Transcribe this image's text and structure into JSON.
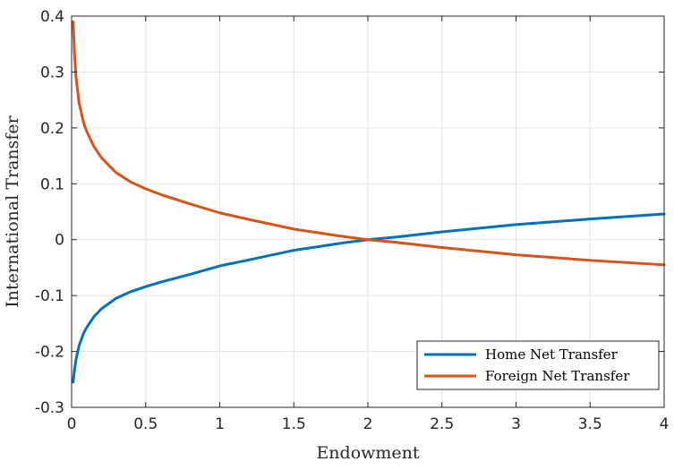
{
  "chart_data": {
    "type": "line",
    "xlabel": "Endowment",
    "ylabel": "International Transfer",
    "xlim": [
      0,
      4
    ],
    "ylim": [
      -0.3,
      0.4
    ],
    "xticks": [
      "0",
      "0.5",
      "1",
      "1.5",
      "2",
      "2.5",
      "3",
      "3.5",
      "4"
    ],
    "yticks": [
      "-0.3",
      "-0.2",
      "-0.1",
      "0",
      "0.1",
      "0.2",
      "0.3",
      "0.4"
    ],
    "grid": true,
    "legend_position": "bottom-right",
    "series": [
      {
        "name": "Home Net Transfer",
        "color": "#0072BD",
        "x": [
          0.01,
          0.02,
          0.03,
          0.05,
          0.08,
          0.1,
          0.15,
          0.2,
          0.3,
          0.4,
          0.5,
          0.6,
          0.8,
          1.0,
          1.2,
          1.5,
          1.8,
          2.0,
          2.2,
          2.5,
          3.0,
          3.5,
          4.0
        ],
        "y": [
          -0.255,
          -0.232,
          -0.214,
          -0.19,
          -0.168,
          -0.158,
          -0.138,
          -0.124,
          -0.105,
          -0.093,
          -0.084,
          -0.076,
          -0.062,
          -0.047,
          -0.036,
          -0.019,
          -0.007,
          0.0,
          0.005,
          0.014,
          0.027,
          0.037,
          0.046
        ]
      },
      {
        "name": "Foreign Net Transfer",
        "color": "#D95319",
        "x": [
          0.01,
          0.02,
          0.03,
          0.05,
          0.08,
          0.1,
          0.15,
          0.2,
          0.3,
          0.4,
          0.5,
          0.6,
          0.8,
          1.0,
          1.2,
          1.5,
          1.8,
          2.0,
          2.2,
          2.5,
          3.0,
          3.5,
          4.0
        ],
        "y": [
          0.39,
          0.33,
          0.29,
          0.245,
          0.21,
          0.195,
          0.167,
          0.147,
          0.12,
          0.103,
          0.091,
          0.081,
          0.064,
          0.048,
          0.036,
          0.019,
          0.007,
          0.0,
          -0.005,
          -0.014,
          -0.027,
          -0.037,
          -0.045
        ]
      }
    ]
  }
}
